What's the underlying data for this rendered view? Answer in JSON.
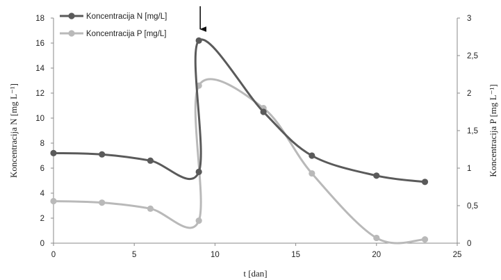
{
  "chart_data": {
    "type": "line",
    "xlabel": "t [dan]",
    "ylabel_left": "Koncentracija N [mg L⁻¹]",
    "ylabel_right": "Koncentracija P [mg L⁻¹]",
    "xlim": [
      0,
      25
    ],
    "xticks": [
      0,
      5,
      10,
      15,
      20,
      25
    ],
    "ylim_left": [
      0,
      18
    ],
    "yticks_left": [
      0,
      2,
      4,
      6,
      8,
      10,
      12,
      14,
      16,
      18
    ],
    "ylim_right": [
      0,
      3
    ],
    "yticks_right": [
      "0",
      "0,5",
      "1",
      "1,5",
      "2",
      "2,5",
      "3"
    ],
    "grid": false,
    "legend_position": "top-left",
    "series": [
      {
        "name": "Koncentracija N [mg/L]",
        "axis": "left",
        "color": "#5a5a5a",
        "x": [
          0,
          3,
          6,
          9,
          9,
          13,
          16,
          20,
          23
        ],
        "y": [
          7.2,
          7.1,
          6.6,
          5.7,
          16.2,
          10.5,
          7.0,
          5.4,
          4.9
        ]
      },
      {
        "name": "Koncentracija P [mg/L]",
        "axis": "right",
        "color": "#b9b9b9",
        "x": [
          0,
          3,
          6,
          9,
          9,
          13,
          16,
          20,
          23
        ],
        "y": [
          0.56,
          0.54,
          0.46,
          0.3,
          2.1,
          1.8,
          0.93,
          0.07,
          0.05
        ]
      }
    ],
    "annotations": [
      {
        "type": "arrow",
        "x": 9,
        "direction": "down"
      }
    ]
  }
}
